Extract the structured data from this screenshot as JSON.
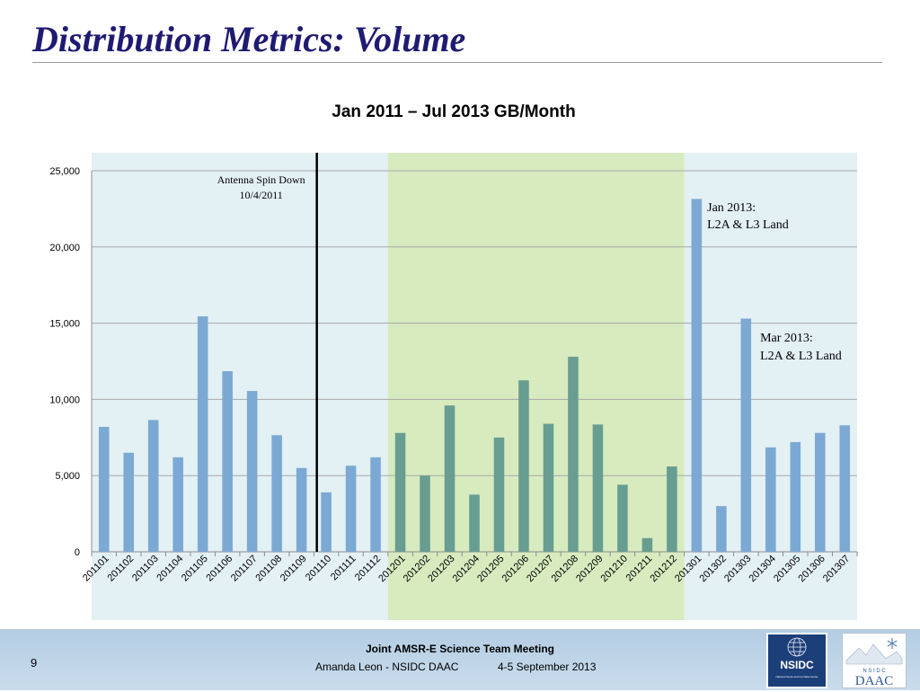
{
  "slide": {
    "title": "Distribution Metrics: Volume"
  },
  "chart_data": {
    "type": "bar",
    "title": "Jan 2011 – Jul 2013 GB/Month",
    "xlabel": "",
    "ylabel": "",
    "ylim": [
      0,
      25000
    ],
    "yticks": [
      "0",
      "5,000",
      "10,000",
      "15,000",
      "20,000",
      "25,000"
    ],
    "grid": true,
    "categories": [
      "201101",
      "201102",
      "201103",
      "201104",
      "201105",
      "201106",
      "201107",
      "201108",
      "201109",
      "201110",
      "201111",
      "201112",
      "201201",
      "201202",
      "201203",
      "201204",
      "201205",
      "201206",
      "201207",
      "201208",
      "201209",
      "201210",
      "201211",
      "201212",
      "201301",
      "201302",
      "201303",
      "201304",
      "201305",
      "201306",
      "201307"
    ],
    "values": [
      8200,
      6500,
      8650,
      6200,
      15450,
      11850,
      10550,
      7650,
      5500,
      3900,
      5650,
      6200,
      7800,
      5000,
      9600,
      3750,
      7500,
      11250,
      8400,
      12800,
      8350,
      4400,
      900,
      5600,
      23150,
      3000,
      15300,
      6850,
      7200,
      7800,
      8300
    ],
    "colors": {
      "bar_blue": "#7ba9d3",
      "bar_green": "#689d91",
      "band_blue": "#e3f0f4",
      "band_green": "#d7ebbf",
      "marker_line": "#000000"
    },
    "bands": [
      {
        "from": "201101",
        "to": "201112",
        "color": "#e3f0f4"
      },
      {
        "from": "201201",
        "to": "201212",
        "color": "#d7ebbf"
      },
      {
        "from": "201301",
        "to": "201307",
        "color": "#e3f0f4"
      }
    ],
    "annotations": {
      "antenna": {
        "line1": "Antenna Spin Down",
        "line2": "10/4/2011",
        "at": "201110"
      },
      "jan2013": {
        "line1": "Jan 2013:",
        "line2": "L2A & L3 Land",
        "at": "201301"
      },
      "mar2013": {
        "line1": "Mar 2013:",
        "line2": "L2A & L3 Land",
        "at": "201303"
      }
    }
  },
  "footer": {
    "page_number": "9",
    "meeting": "Joint AMSR-E Science Team Meeting",
    "presenter": "Amanda Leon - NSIDC DAAC",
    "date": "4-5 September 2013",
    "nsidc_logo_text": "NSIDC",
    "nsidc_logo_subtext": "National Snow and Ice Data Center",
    "daac_logo_top": "N S I D C",
    "daac_logo_text": "DAAC"
  }
}
